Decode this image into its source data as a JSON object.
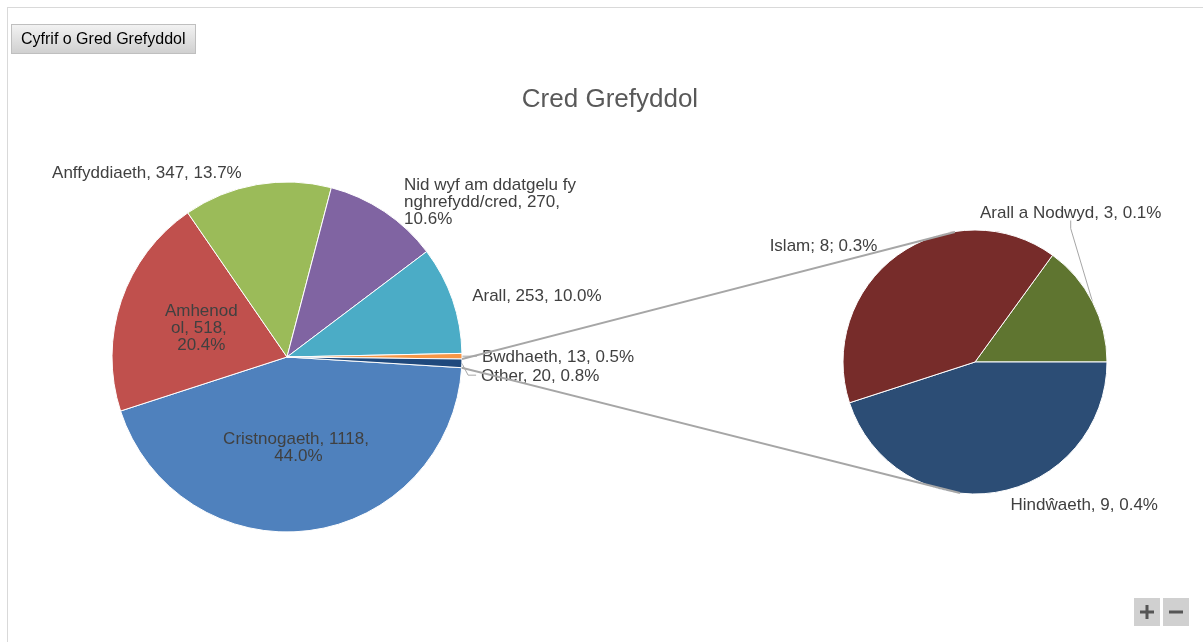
{
  "chart_data": [
    {
      "type": "pie",
      "title": "Cred Grefyddol",
      "annotations": [
        "Cyfrif o Gred Grefyddol"
      ],
      "categories": [
        "Cristnogaeth",
        "Amhenodol",
        "Anffyddiaeth",
        "Nid wyf am ddatgelu fy nghrefydd/cred",
        "Arall",
        "Bwdhaeth",
        "Other"
      ],
      "values": [
        1118,
        518,
        347,
        270,
        253,
        13,
        20
      ],
      "value_labels": [
        ", 1118, 44.0%",
        ", 518, 20.4%",
        ", 347, 13.7%",
        ", 270, 10.6%",
        ", 253, 10.0%",
        ", 13, 0.5%",
        ", 20, 0.8%"
      ],
      "colors": [
        "#4f81bd",
        "#c0504d",
        "#9bbb59",
        "#8064a2",
        "#4bacc6",
        "#f79646",
        "#1f497d"
      ]
    },
    {
      "type": "pie",
      "categories": [
        "Arall a Nodwyd",
        "Hindŵaeth",
        "Islam"
      ],
      "values": [
        3,
        9,
        8
      ],
      "value_labels": [
        ", 3, 0.1%",
        ", 9, 0.4%",
        "; 8; 0.3%"
      ],
      "colors": [
        "#5f7530",
        "#2c4d75",
        "#772c2a"
      ]
    }
  ]
}
